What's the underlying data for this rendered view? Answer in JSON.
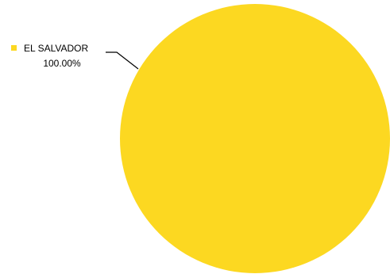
{
  "chart_data": {
    "type": "pie",
    "slices": [
      {
        "label": "EL SALVADOR",
        "value": 100.0,
        "value_label": "100.00%",
        "color": "#FCD821"
      }
    ],
    "legend": false,
    "data_labels": "outside-with-leader-line"
  },
  "colors": {
    "background": "#ffffff",
    "leader_line": "#000000"
  }
}
